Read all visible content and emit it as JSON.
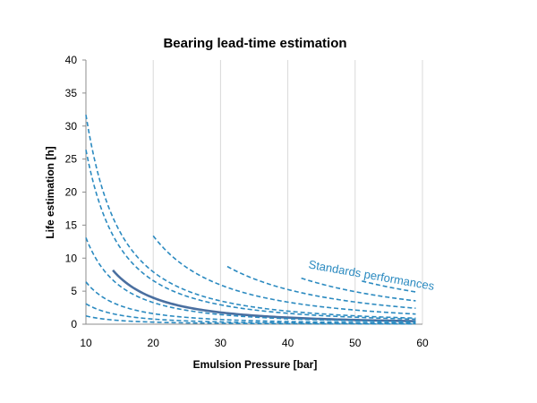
{
  "chart_data": {
    "type": "line",
    "title": "Bearing lead-time estimation",
    "xlabel": "Emulsion Pressure [bar]",
    "ylabel": "Life estimation [h]",
    "xlim": [
      10,
      60
    ],
    "ylim": [
      0,
      40
    ],
    "x_ticks": [
      "10",
      "20",
      "30",
      "40",
      "50",
      "60"
    ],
    "y_ticks": [
      "0",
      "5",
      "10",
      "15",
      "20",
      "25",
      "30",
      "35",
      "40"
    ],
    "grid": {
      "x": true,
      "y": false
    },
    "legend": "none",
    "colors": {
      "solid": "#4a6fa0",
      "dashed": "#2b8ac0",
      "annotation": "#2b8ac0"
    },
    "annotation": {
      "text": "Standards performances",
      "x": 43,
      "y": 8.5
    },
    "series": [
      {
        "style": "solid",
        "x_start": 14,
        "x_end": 59,
        "k": 1600,
        "note": "standard"
      },
      {
        "style": "dashed",
        "x_start": 10,
        "x_end": 59,
        "k": 125
      },
      {
        "style": "dashed",
        "x_start": 10,
        "x_end": 59,
        "k": 310
      },
      {
        "style": "dashed",
        "x_start": 10,
        "x_end": 59,
        "k": 640
      },
      {
        "style": "dashed",
        "x_start": 10,
        "x_end": 59,
        "k": 1310
      },
      {
        "style": "dashed",
        "x_start": 10,
        "x_end": 59,
        "k": 2640
      },
      {
        "style": "dashed",
        "x_start": 10,
        "x_end": 59,
        "k": 3170
      },
      {
        "style": "dashed",
        "x_start": 20,
        "x_end": 59,
        "k": 5350
      },
      {
        "style": "dashed",
        "x_start": 31,
        "x_end": 59,
        "k": 8400
      },
      {
        "style": "dashed",
        "x_start": 42,
        "x_end": 59,
        "k": 12300
      },
      {
        "style": "dashed",
        "x_start": 51,
        "x_end": 59,
        "k": 17000
      }
    ]
  }
}
